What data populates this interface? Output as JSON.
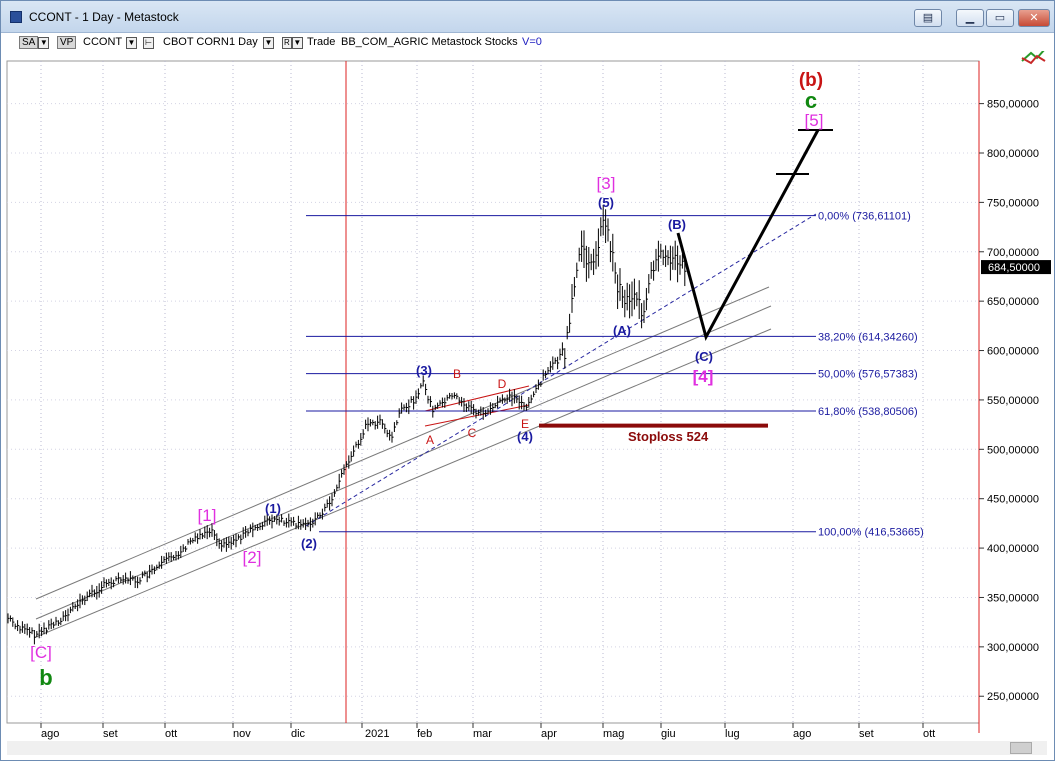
{
  "window": {
    "title": "CCONT - 1 Day - Metastock"
  },
  "toolbar": {
    "sa": "SA",
    "vp": "VP",
    "symbol": "CCONT",
    "name": "CBOT CORN",
    "period": "1 Day",
    "r": "R",
    "mode": "Trade",
    "source": "BB_COM_AGRIC Metastock Stocks",
    "volume": "V=0"
  },
  "price_axis": {
    "labels": [
      "850,00000",
      "800,00000",
      "750,00000",
      "700,00000",
      "650,00000",
      "600,00000",
      "550,00000",
      "500,00000",
      "450,00000",
      "400,00000",
      "350,00000",
      "300,00000",
      "250,00000"
    ],
    "levels": [
      850,
      800,
      750,
      700,
      650,
      600,
      550,
      500,
      450,
      400,
      350,
      300,
      250
    ],
    "last_price": "684,50000"
  },
  "time_axis": {
    "labels": [
      "ago",
      "set",
      "ott",
      "nov",
      "dic",
      "2021",
      "feb",
      "mar",
      "apr",
      "mag",
      "giu",
      "lug",
      "ago",
      "set",
      "ott"
    ]
  },
  "fibonacci": [
    {
      "label": "0,00% (736,61101)",
      "value": 736.61
    },
    {
      "label": "38,20% (614,34260)",
      "value": 614.34
    },
    {
      "label": "50,00% (576,57383)",
      "value": 576.57
    },
    {
      "label": "61,80% (538,80506)",
      "value": 538.81
    },
    {
      "label": "100,00% (416,53665)",
      "value": 416.54
    }
  ],
  "stoploss": {
    "label": "Stoploss 524",
    "value": 524
  },
  "annotations": {
    "b_red": "(b)",
    "c_green": "c",
    "five_magenta": "[5]",
    "three_magenta": "[3]",
    "five_blue": "(5)",
    "B_blue": "(B)",
    "A_blue": "(A)",
    "C_blue": "(C)",
    "four_magenta": "[4]",
    "three_blue": "(3)",
    "four_blue": "(4)",
    "one_magenta": "[1]",
    "two_magenta": "[2]",
    "one_blue": "(1)",
    "two_blue": "(2)",
    "C_magenta": "[C]",
    "b_green": "b",
    "tri_A": "A",
    "tri_B": "B",
    "tri_C": "C",
    "tri_D": "D",
    "tri_E": "E"
  },
  "colors": {
    "blue": "#1a1aa0",
    "magenta": "#e030e0",
    "red": "#c81414",
    "green": "#118811",
    "stoploss": "#8b0a0a"
  }
}
